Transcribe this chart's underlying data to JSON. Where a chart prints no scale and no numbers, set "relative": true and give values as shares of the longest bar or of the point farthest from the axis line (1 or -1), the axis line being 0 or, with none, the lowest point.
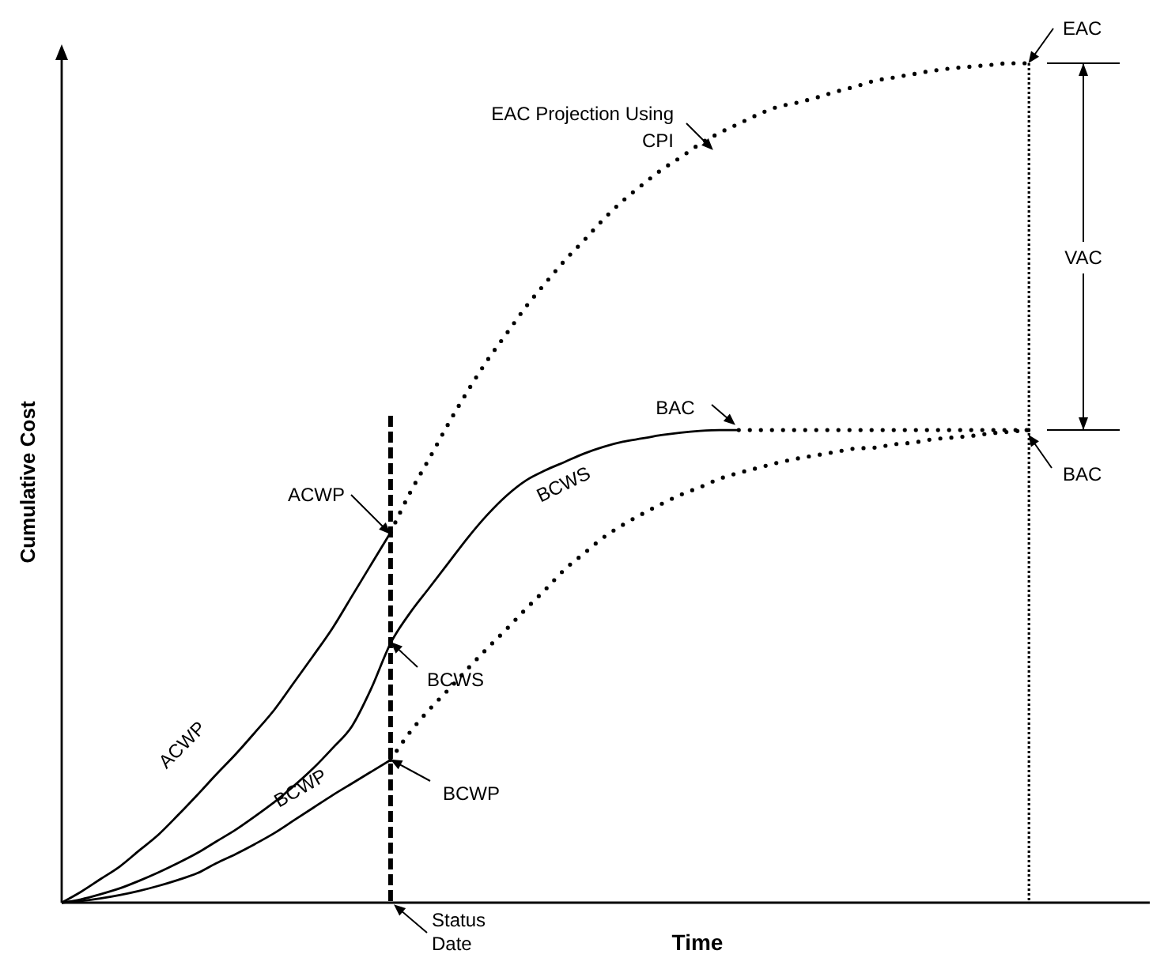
{
  "chart_data": {
    "type": "line",
    "relative": true,
    "xlabel": "Time",
    "ylabel": "Cumulative Cost",
    "categories": [
      null,
      null,
      null,
      null,
      null,
      null,
      null,
      null,
      null,
      null,
      null,
      null,
      null,
      null,
      null,
      null,
      null,
      null,
      null,
      null,
      null,
      null,
      null,
      null,
      null,
      null,
      null,
      null,
      null,
      null,
      null,
      null,
      null,
      null,
      null,
      null,
      null,
      null,
      null,
      null,
      null,
      null,
      null,
      null,
      null,
      null,
      null,
      null,
      null,
      null,
      null,
      null,
      null,
      null,
      null,
      null,
      null
    ],
    "series": [
      {
        "name": "ACWP",
        "color": "#000000",
        "line_style": "solid",
        "values": [
          0,
          0.013,
          0.028,
          0.043,
          0.062,
          0.081,
          0.104,
          0.128,
          0.153,
          0.177,
          0.203,
          0.23,
          0.262,
          0.294,
          0.327,
          0.365,
          0.403,
          0.441,
          null,
          null,
          null,
          null,
          null,
          null,
          null,
          null,
          null,
          null,
          null,
          null,
          null,
          null,
          null,
          null,
          null,
          null,
          null,
          null,
          null,
          null,
          null,
          null,
          null,
          null,
          null,
          null,
          null,
          null,
          null,
          null,
          null,
          null,
          null,
          null,
          null,
          null,
          null
        ]
      },
      {
        "name": "BCWS",
        "color": "#000000",
        "line_style": "solid",
        "values": [
          0,
          0.004,
          0.01,
          0.017,
          0.026,
          0.036,
          0.047,
          0.059,
          0.073,
          0.087,
          0.103,
          0.12,
          0.139,
          0.16,
          0.184,
          0.21,
          0.255,
          0.309,
          0.345,
          0.375,
          0.405,
          0.435,
          0.462,
          0.485,
          0.503,
          0.515,
          0.525,
          0.535,
          0.543,
          0.549,
          0.553,
          0.557,
          0.56,
          0.562,
          0.563,
          0.563,
          null,
          null,
          null,
          null,
          null,
          null,
          null,
          null,
          null,
          null,
          null,
          null,
          null,
          null,
          null,
          null,
          null,
          null,
          null,
          null,
          null
        ]
      },
      {
        "name": "BCWP",
        "color": "#000000",
        "line_style": "solid",
        "values": [
          0,
          0.002,
          0.005,
          0.009,
          0.014,
          0.02,
          0.027,
          0.035,
          0.047,
          0.058,
          0.07,
          0.083,
          0.098,
          0.113,
          0.128,
          0.142,
          0.156,
          0.17,
          null,
          null,
          null,
          null,
          null,
          null,
          null,
          null,
          null,
          null,
          null,
          null,
          null,
          null,
          null,
          null,
          null,
          null,
          null,
          null,
          null,
          null,
          null,
          null,
          null,
          null,
          null,
          null,
          null,
          null,
          null,
          null,
          null,
          null,
          null,
          null,
          null,
          null,
          null
        ]
      },
      {
        "color": "#000000",
        "line_style": "dotted",
        "values": [
          null,
          null,
          null,
          null,
          null,
          null,
          null,
          null,
          null,
          null,
          null,
          null,
          null,
          null,
          null,
          null,
          null,
          0.441,
          0.488,
          0.529,
          0.571,
          0.61,
          0.646,
          0.678,
          0.71,
          0.738,
          0.765,
          0.789,
          0.814,
          0.836,
          0.855,
          0.873,
          0.888,
          0.904,
          0.917,
          0.928,
          0.939,
          0.948,
          0.953,
          0.959,
          0.966,
          0.972,
          0.979,
          0.983,
          0.987,
          0.991,
          0.994,
          0.996,
          0.998,
          1,
          1,
          null,
          null,
          null,
          null,
          null,
          null
        ]
      },
      {
        "color": "#000000",
        "line_style": "dotted",
        "values": [
          null,
          null,
          null,
          null,
          null,
          null,
          null,
          null,
          null,
          null,
          null,
          null,
          null,
          null,
          null,
          null,
          null,
          0.17,
          0.203,
          0.23,
          0.254,
          0.279,
          0.303,
          0.326,
          0.35,
          0.373,
          0.397,
          0.416,
          0.435,
          0.45,
          0.463,
          0.475,
          0.486,
          0.495,
          0.505,
          0.512,
          0.518,
          0.524,
          0.529,
          0.533,
          0.537,
          0.541,
          0.542,
          0.546,
          0.548,
          0.552,
          0.554,
          0.556,
          0.559,
          0.561,
          0.563,
          null,
          null,
          null,
          null,
          null,
          null
        ]
      },
      {
        "color": "#000000",
        "line_style": "dotted",
        "values": [
          null,
          null,
          null,
          null,
          null,
          null,
          null,
          null,
          null,
          null,
          null,
          null,
          null,
          null,
          null,
          null,
          null,
          null,
          null,
          null,
          null,
          null,
          null,
          null,
          null,
          null,
          null,
          null,
          null,
          null,
          null,
          null,
          null,
          null,
          null,
          0.563,
          0.563,
          0.563,
          0.563,
          0.563,
          0.563,
          0.563,
          0.563,
          0.563,
          0.563,
          0.563,
          0.563,
          0.563,
          0.563,
          0.563,
          0.563,
          null,
          null,
          null,
          null,
          null,
          null
        ]
      }
    ],
    "annotations": [
      "EAC Projection Using CPI",
      "EAC",
      "VAC",
      "BAC",
      "BAC",
      "ACWP",
      "BCWS",
      "BCWP",
      "Status Date"
    ]
  }
}
